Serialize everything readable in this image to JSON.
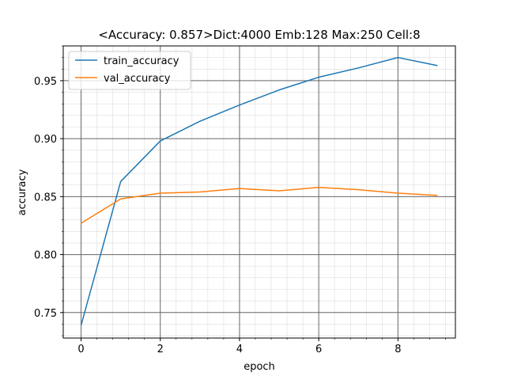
{
  "chart_data": {
    "type": "line",
    "title": "<Accuracy: 0.857>Dict:4000 Emb:128 Max:250 Cell:8",
    "xlabel": "epoch",
    "ylabel": "accuracy",
    "x": [
      0,
      1,
      2,
      3,
      4,
      5,
      6,
      7,
      8,
      9
    ],
    "xlim": [
      -0.45,
      9.45
    ],
    "ylim": [
      0.728,
      0.98
    ],
    "xticks": [
      0,
      2,
      4,
      6,
      8
    ],
    "yticks": [
      0.75,
      0.8,
      0.85,
      0.9,
      0.95
    ],
    "xtick_labels": [
      "0",
      "2",
      "4",
      "6",
      "8"
    ],
    "ytick_labels": [
      "0.75",
      "0.80",
      "0.85",
      "0.90",
      "0.95"
    ],
    "grid": true,
    "minor_grid": true,
    "legend_position": "top-left",
    "series": [
      {
        "name": "train_accuracy",
        "color": "#1f77b4",
        "values": [
          0.739,
          0.863,
          0.898,
          0.915,
          0.929,
          0.942,
          0.953,
          0.961,
          0.97,
          0.963
        ]
      },
      {
        "name": "val_accuracy",
        "color": "#ff7f0e",
        "values": [
          0.827,
          0.848,
          0.853,
          0.854,
          0.857,
          0.855,
          0.858,
          0.856,
          0.853,
          0.851
        ]
      }
    ]
  }
}
